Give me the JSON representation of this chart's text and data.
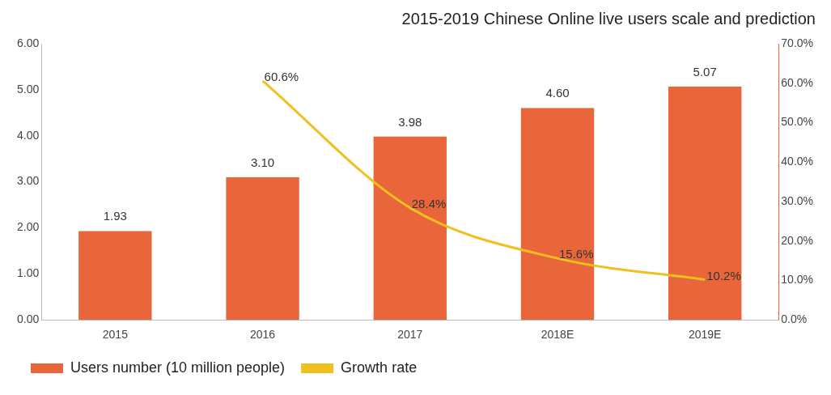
{
  "chart_data": {
    "type": "bar",
    "title": "2015-2019 Chinese Online live users scale and prediction",
    "categories": [
      "2015",
      "2016",
      "2017",
      "2018E",
      "2019E"
    ],
    "series": [
      {
        "name": "Users number (10 million people)",
        "color": "#e8663a",
        "values": [
          1.93,
          3.1,
          3.98,
          4.6,
          5.07
        ],
        "value_labels": [
          "1.93",
          "3.10",
          "3.98",
          "4.60",
          "5.07"
        ]
      },
      {
        "name": "Growth rate",
        "type": "line",
        "axis": "y2",
        "color": "#f0c020",
        "values": [
          null,
          60.6,
          28.4,
          15.6,
          10.2
        ],
        "value_labels": [
          null,
          "60.6%",
          "28.4%",
          "15.6%",
          "10.2%"
        ]
      }
    ],
    "ylim": [
      0,
      6
    ],
    "yticks": [
      {
        "value": 0,
        "label": "0.00"
      },
      {
        "value": 1,
        "label": "1.00"
      },
      {
        "value": 2,
        "label": "2.00"
      },
      {
        "value": 3,
        "label": "3.00"
      },
      {
        "value": 4,
        "label": "4.00"
      },
      {
        "value": 5,
        "label": "5.00"
      },
      {
        "value": 6,
        "label": "6.00"
      }
    ],
    "y2lim": [
      0,
      70
    ],
    "y2ticks": [
      {
        "value": 0,
        "label": "0.0%"
      },
      {
        "value": 10,
        "label": "10.0%"
      },
      {
        "value": 20,
        "label": "20.0%"
      },
      {
        "value": 30,
        "label": "30.0%"
      },
      {
        "value": 40,
        "label": "40.0%"
      },
      {
        "value": 50,
        "label": "50.0%"
      },
      {
        "value": 60,
        "label": "60.0%"
      },
      {
        "value": 70,
        "label": "70.0%"
      }
    ],
    "grid": false,
    "legend": "bottom left",
    "marker": "none",
    "line_style": "solid"
  }
}
